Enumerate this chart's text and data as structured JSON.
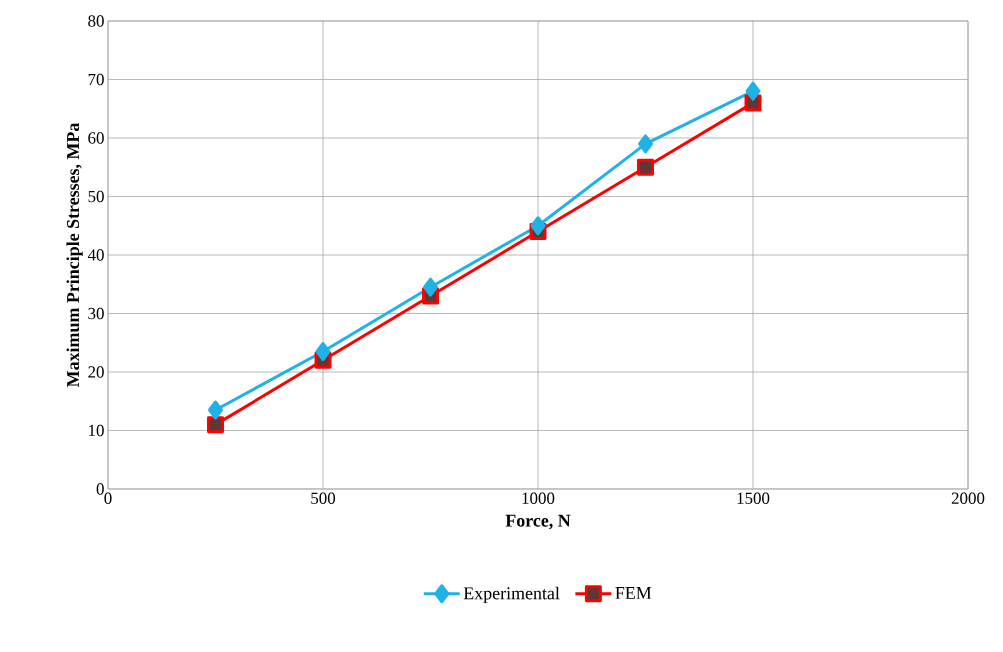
{
  "chart_data": {
    "type": "line",
    "xlabel": "Force, N",
    "ylabel": "Maximum  Principle  Stresses, MPa",
    "x": [
      250,
      500,
      750,
      1000,
      1250,
      1500
    ],
    "series": [
      {
        "name": "Experimental",
        "color": "#1fb2e6",
        "marker": "diamond",
        "values": [
          13.5,
          23.5,
          34.5,
          45,
          59,
          68
        ]
      },
      {
        "name": "FEM",
        "color": "#ff0000",
        "marker": "square",
        "values": [
          11,
          22,
          33,
          44,
          55,
          66
        ]
      }
    ],
    "xlim": [
      0,
      2000
    ],
    "xticks": [
      0,
      500,
      1000,
      1500,
      2000
    ],
    "ylim": [
      0,
      80
    ],
    "yticks": [
      0,
      10,
      20,
      30,
      40,
      50,
      60,
      70,
      80
    ],
    "grid": true,
    "legend": "bottom",
    "line_style": "solid"
  }
}
